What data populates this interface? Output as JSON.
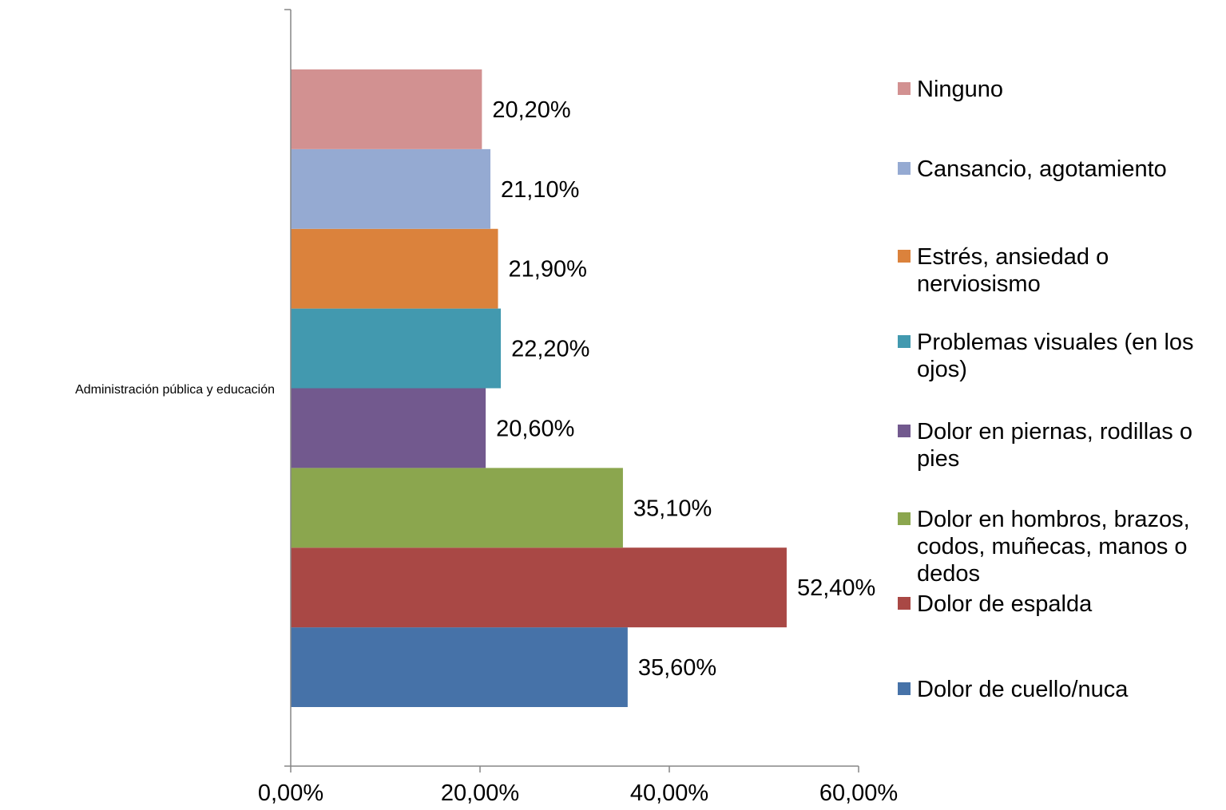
{
  "chart_data": {
    "type": "bar",
    "orientation": "horizontal",
    "category": "Administración pública y educación",
    "series": [
      {
        "name": "Dolor de cuello/nuca",
        "value": 35.6,
        "label": "35,60%",
        "color": "#4672A8"
      },
      {
        "name": "Dolor de espalda",
        "value": 52.4,
        "label": "52,40%",
        "color": "#A94845"
      },
      {
        "name": "Dolor en hombros, brazos, codos, muñecas, manos o dedos",
        "value": 35.1,
        "label": "35,10%",
        "color": "#8BA64E"
      },
      {
        "name": "Dolor en piernas, rodillas o pies",
        "value": 20.6,
        "label": "20,60%",
        "color": "#72598E"
      },
      {
        "name": "Problemas visuales (en los ojos)",
        "value": 22.2,
        "label": "22,20%",
        "color": "#4299AF"
      },
      {
        "name": "Estrés, ansiedad o nerviosismo",
        "value": 21.9,
        "label": "21,90%",
        "color": "#DB823C"
      },
      {
        "name": "Cansancio, agotamiento",
        "value": 21.1,
        "label": "21,10%",
        "color": "#95AAD2"
      },
      {
        "name": "Ninguno",
        "value": 20.2,
        "label": "20,20%",
        "color": "#D29191"
      }
    ],
    "xlim": [
      0,
      60
    ],
    "xticks": [
      {
        "value": 0,
        "label": "0,00%"
      },
      {
        "value": 20,
        "label": "20,00%"
      },
      {
        "value": 40,
        "label": "40,00%"
      },
      {
        "value": 60,
        "label": "60,00%"
      }
    ],
    "grid": false,
    "legend_position": "right"
  }
}
